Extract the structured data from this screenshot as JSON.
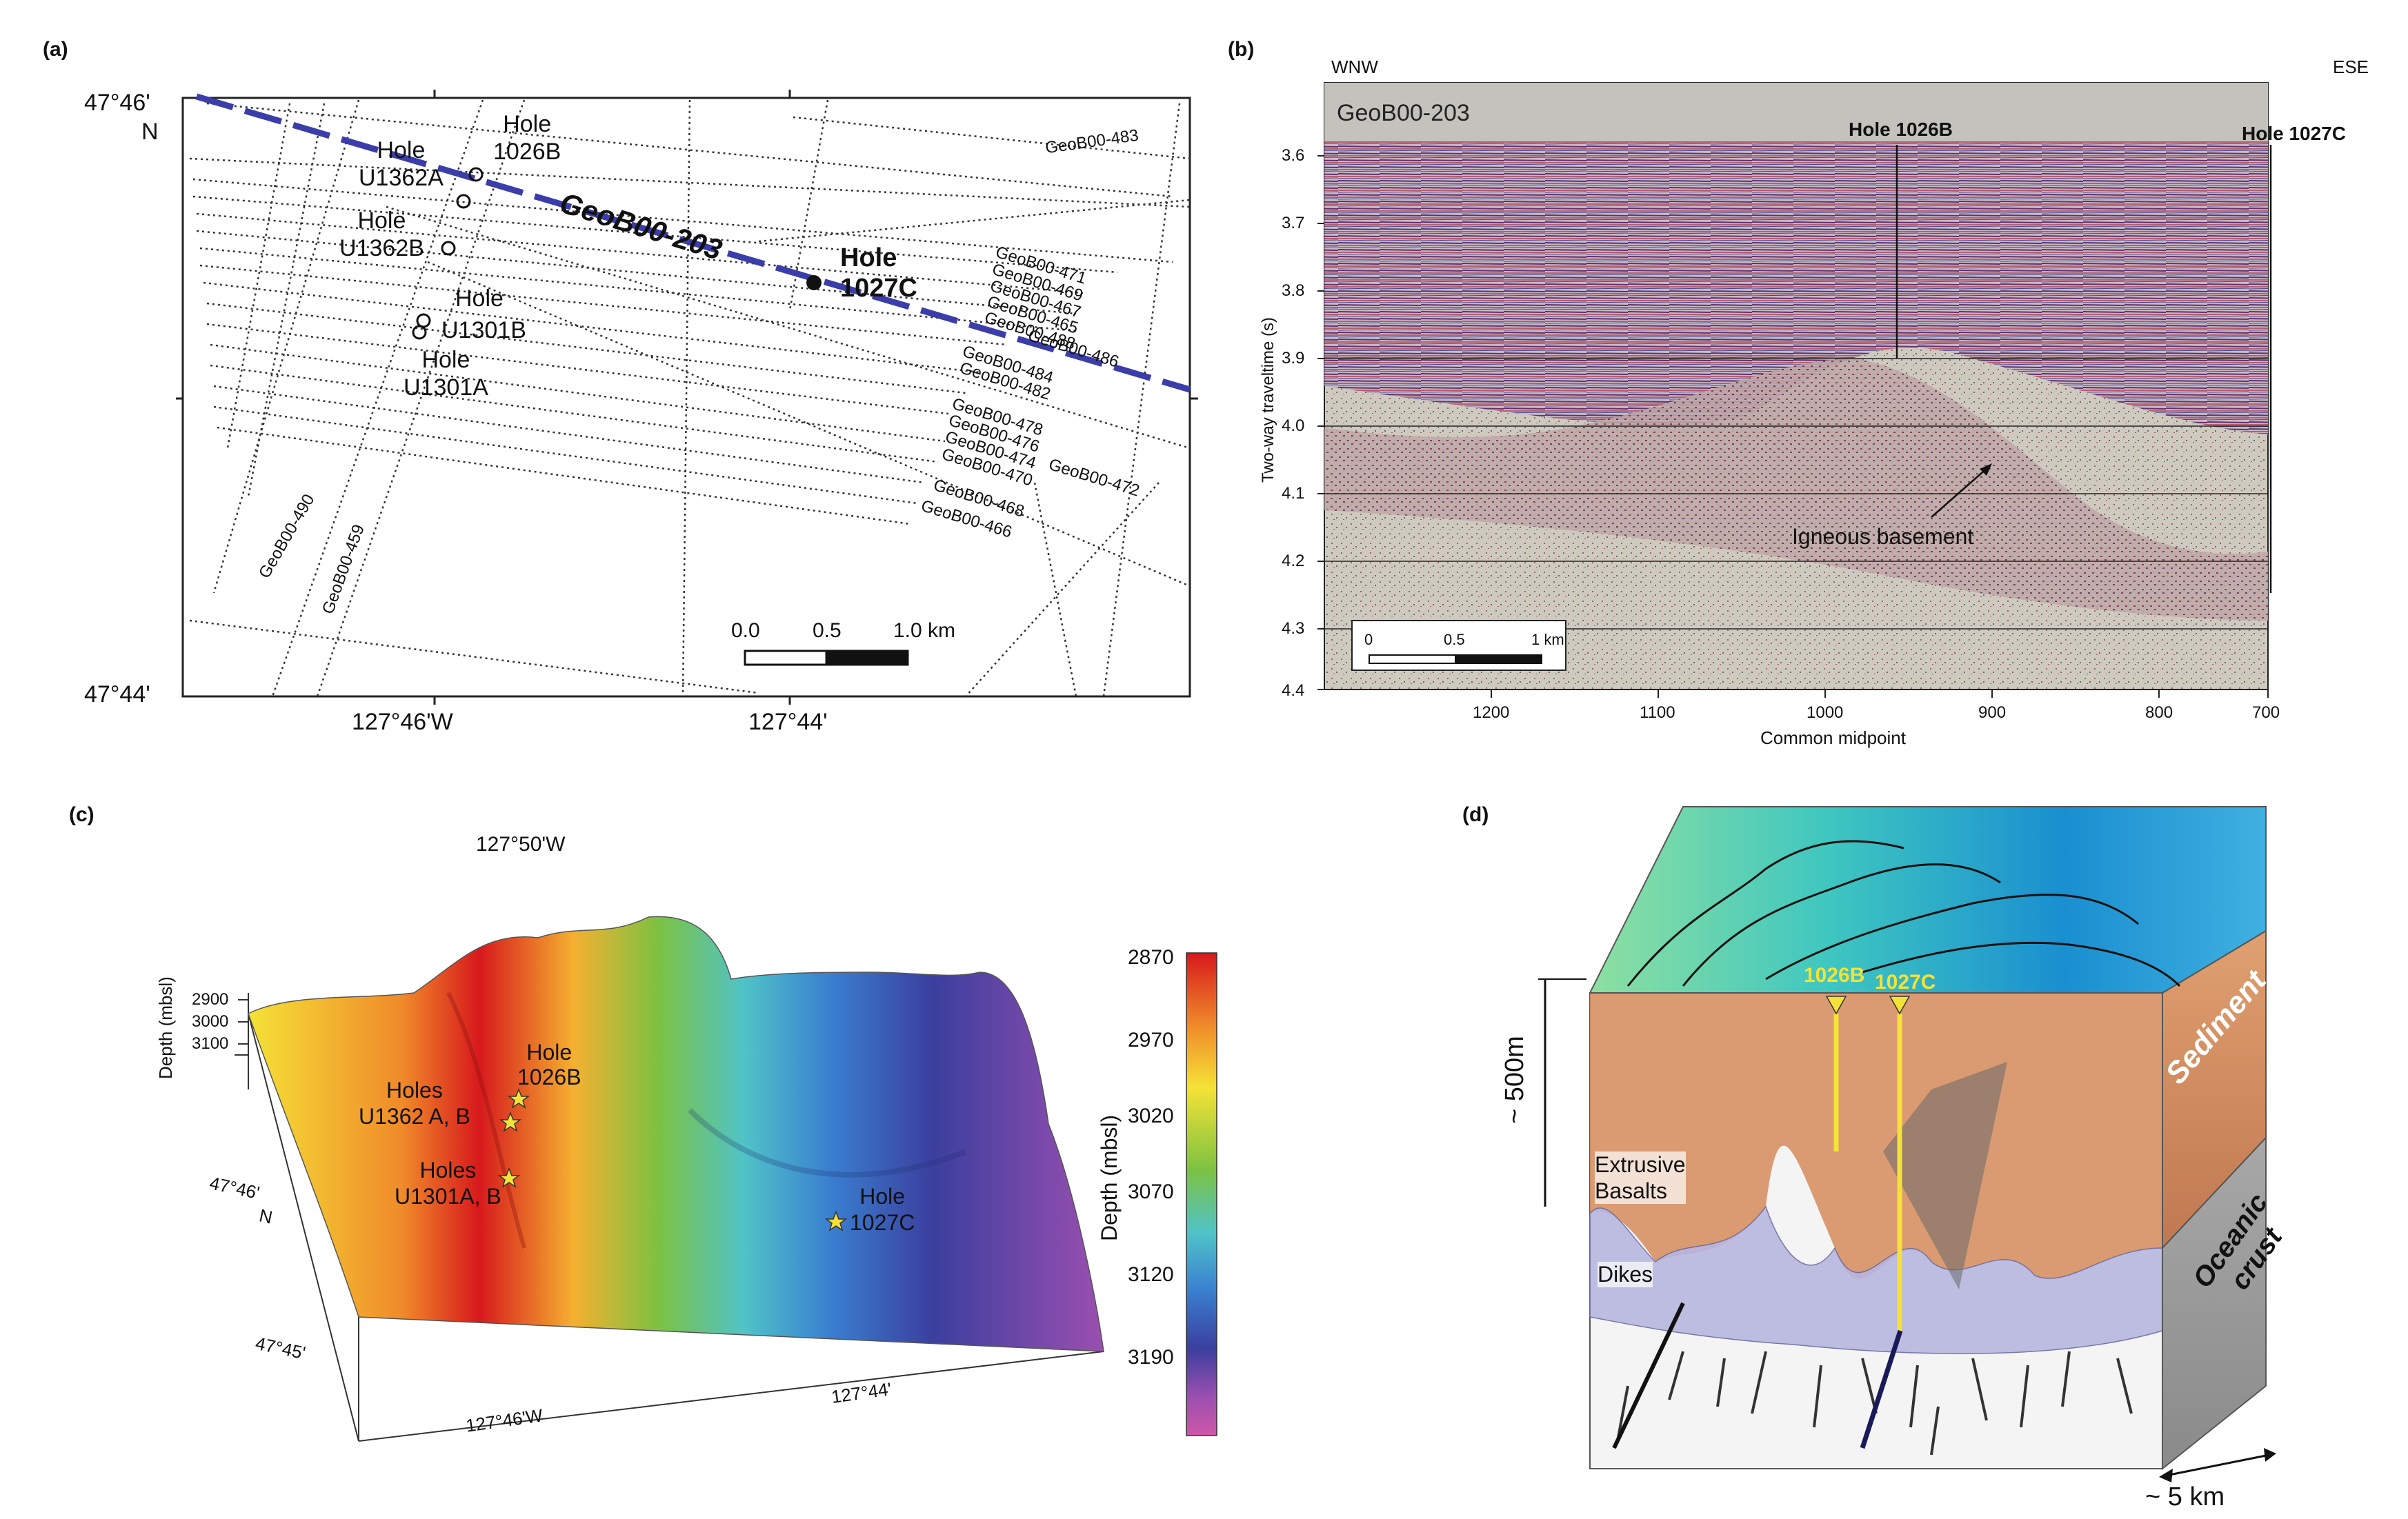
{
  "panel_a": {
    "label": "(a)",
    "lat_top": "47°46'",
    "lat_top_n": "N",
    "lat_bottom": "47°44'",
    "lon_left": "127°46'W",
    "lon_right": "127°44'",
    "main_line": "GeoB00-203",
    "holes": [
      {
        "name": "Hole U1362A",
        "l1": "Hole",
        "l2": "U1362A"
      },
      {
        "name": "Hole 1026B",
        "l1": "Hole",
        "l2": "1026B"
      },
      {
        "name": "Hole U1362B",
        "l1": "Hole",
        "l2": "U1362B"
      },
      {
        "name": "Hole 1027C",
        "l1": "Hole",
        "l2": "1027C"
      },
      {
        "name": "Hole U1301B",
        "l1": "Hole",
        "l2": "U1301B"
      },
      {
        "name": "Hole U1301A",
        "l1": "Hole",
        "l2": "U1301A"
      }
    ],
    "line_labels": [
      "GeoB00-483",
      "GeoB00-471",
      "GeoB00-469",
      "GeoB00-467",
      "GeoB00-465",
      "GeoB00-488",
      "GeoB00-486",
      "GeoB00-484",
      "GeoB00-482",
      "GeoB00-478",
      "GeoB00-476",
      "GeoB00-474",
      "GeoB00-472",
      "GeoB00-470",
      "GeoB00-468",
      "GeoB00-466",
      "GeoB00-490",
      "GeoB00-459"
    ],
    "scale": {
      "t0": "0.0",
      "t1": "0.5",
      "t2": "1.0 km"
    }
  },
  "panel_b": {
    "label": "(b)",
    "left_dir": "WNW",
    "right_dir": "ESE",
    "profile": "GeoB00-203",
    "hole1": "Hole 1026B",
    "hole2": "Hole 1027C",
    "annotation": "Igneous basement",
    "ylabel": "Two-way traveltime (s)",
    "xlabel": "Common midpoint",
    "yticks": [
      "3.6",
      "3.7",
      "3.8",
      "3.9",
      "4.0",
      "4.1",
      "4.2",
      "4.3",
      "4.4"
    ],
    "xticks": [
      "1200",
      "1100",
      "1000",
      "900",
      "800",
      "700"
    ],
    "scale": {
      "t0": "0",
      "t1": "0.5",
      "t2": "1 km"
    }
  },
  "panel_c": {
    "label": "(c)",
    "lon_top": "127°50'W",
    "zlabel": "Depth (mbsl)",
    "zticks": [
      "2900",
      "3000",
      "3100"
    ],
    "lat1": "47°46'",
    "lat1_n": "N",
    "lat2": "47°45'",
    "lon1": "127°46'W",
    "lon2": "127°44'",
    "holes": [
      {
        "l1": "Hole",
        "l2": "1026B"
      },
      {
        "l1": "Holes",
        "l2": "U1362 A, B"
      },
      {
        "l1": "Holes",
        "l2": "U1301A, B"
      },
      {
        "l1": "Hole",
        "l2": "1027C"
      }
    ],
    "colorbar_label": "Depth (mbsl)",
    "colorbar_ticks": [
      "2870",
      "2970",
      "3020",
      "3070",
      "3120",
      "3190"
    ],
    "colors": [
      "#d7191c",
      "#f08a2a",
      "#f5e236",
      "#7cc242",
      "#4fc3c8",
      "#3a7fd0",
      "#3b3f9e",
      "#9b4fb0",
      "#cf57a8"
    ]
  },
  "panel_d": {
    "label": "(d)",
    "hole1": "1026B",
    "hole2": "1027C",
    "depth_label": "~ 500m",
    "layer1": "Sediment",
    "layer2_l1": "Oceanic",
    "layer2_l2": "crust",
    "extrusive_l1": "Extrusive",
    "extrusive_l2": "Basalts",
    "dikes": "Dikes",
    "width_label": "~ 5 km"
  }
}
